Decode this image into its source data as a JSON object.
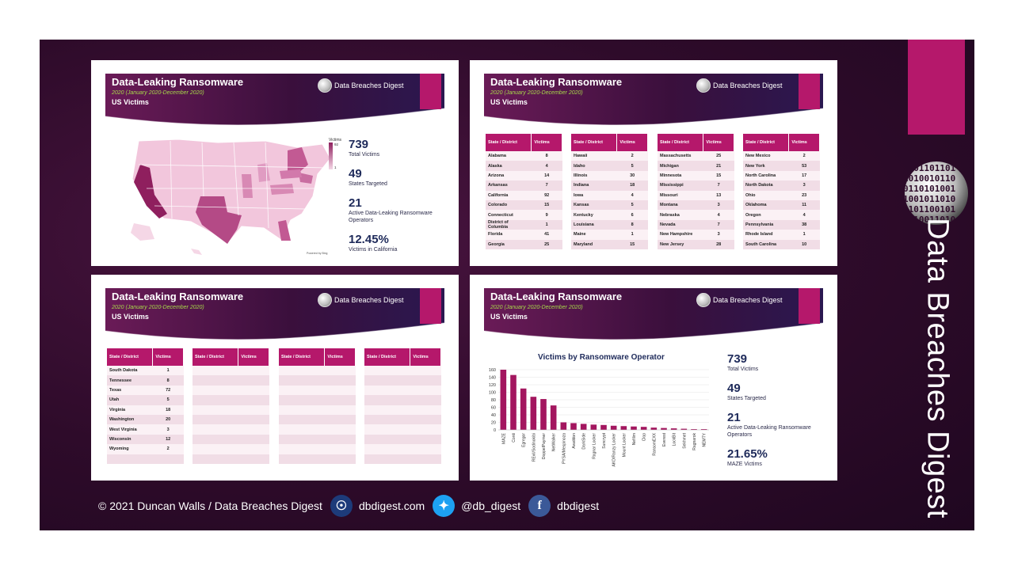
{
  "brand": {
    "vertical_title": "Data Breaches Digest"
  },
  "slide_header": {
    "title": "Data-Leaking Ransomware",
    "subtitle": "2020 (January 2020-December 2020)",
    "section": "US Victims",
    "logo_text": "Data Breaches Digest"
  },
  "slide1": {
    "map_legend_title": "Victims",
    "map_legend_max": "92",
    "map_legend_min": "1",
    "map_credit": "Powered by Bing",
    "stats": [
      {
        "value": "739",
        "label": "Total Victims"
      },
      {
        "value": "49",
        "label": "States Targeted"
      },
      {
        "value": "21",
        "label": "Active Data-Leaking Ransomware Operators"
      },
      {
        "value": "12.45%",
        "label": "Victims in California"
      }
    ]
  },
  "tables": {
    "col_state": "State / District",
    "col_victims": "Victims",
    "slide2": [
      [
        [
          "Alabama",
          "8"
        ],
        [
          "Alaska",
          "4"
        ],
        [
          "Arizona",
          "14"
        ],
        [
          "Arkansas",
          "7"
        ],
        [
          "California",
          "92"
        ],
        [
          "Colorado",
          "15"
        ],
        [
          "Connecticut",
          "9"
        ],
        [
          "District of Columbia",
          "1"
        ],
        [
          "Florida",
          "41"
        ],
        [
          "Georgia",
          "25"
        ]
      ],
      [
        [
          "Hawaii",
          "2"
        ],
        [
          "Idaho",
          "5"
        ],
        [
          "Illinois",
          "30"
        ],
        [
          "Indiana",
          "18"
        ],
        [
          "Iowa",
          "4"
        ],
        [
          "Kansas",
          "5"
        ],
        [
          "Kentucky",
          "6"
        ],
        [
          "Louisiana",
          "8"
        ],
        [
          "Maine",
          "1"
        ],
        [
          "Maryland",
          "15"
        ]
      ],
      [
        [
          "Massachusetts",
          "25"
        ],
        [
          "Michigan",
          "21"
        ],
        [
          "Minnesota",
          "15"
        ],
        [
          "Mississippi",
          "7"
        ],
        [
          "Missouri",
          "13"
        ],
        [
          "Montana",
          "3"
        ],
        [
          "Nebraska",
          "4"
        ],
        [
          "Nevada",
          "7"
        ],
        [
          "New Hampshire",
          "3"
        ],
        [
          "New Jersey",
          "28"
        ]
      ],
      [
        [
          "New Mexico",
          "2"
        ],
        [
          "New York",
          "53"
        ],
        [
          "North Carolina",
          "17"
        ],
        [
          "North Dakota",
          "3"
        ],
        [
          "Ohio",
          "23"
        ],
        [
          "Oklahoma",
          "11"
        ],
        [
          "Oregon",
          "4"
        ],
        [
          "Pennsylvania",
          "38"
        ],
        [
          "Rhode Island",
          "1"
        ],
        [
          "South Carolina",
          "10"
        ]
      ]
    ],
    "slide3": [
      [
        [
          "South Dakota",
          "1"
        ],
        [
          "Tennessee",
          "8"
        ],
        [
          "Texas",
          "72"
        ],
        [
          "Utah",
          "5"
        ],
        [
          "Virginia",
          "18"
        ],
        [
          "Washington",
          "20"
        ],
        [
          "West Virginia",
          "3"
        ],
        [
          "Wisconsin",
          "12"
        ],
        [
          "Wyoming",
          "2"
        ],
        [
          "",
          ""
        ]
      ],
      [
        [
          "",
          ""
        ],
        [
          "",
          ""
        ],
        [
          "",
          ""
        ],
        [
          "",
          ""
        ],
        [
          "",
          ""
        ],
        [
          "",
          ""
        ],
        [
          "",
          ""
        ],
        [
          "",
          ""
        ],
        [
          "",
          ""
        ],
        [
          "",
          ""
        ]
      ],
      [
        [
          "",
          ""
        ],
        [
          "",
          ""
        ],
        [
          "",
          ""
        ],
        [
          "",
          ""
        ],
        [
          "",
          ""
        ],
        [
          "",
          ""
        ],
        [
          "",
          ""
        ],
        [
          "",
          ""
        ],
        [
          "",
          ""
        ],
        [
          "",
          ""
        ]
      ],
      [
        [
          "",
          ""
        ],
        [
          "",
          ""
        ],
        [
          "",
          ""
        ],
        [
          "",
          ""
        ],
        [
          "",
          ""
        ],
        [
          "",
          ""
        ],
        [
          "",
          ""
        ],
        [
          "",
          ""
        ],
        [
          "",
          ""
        ],
        [
          "",
          ""
        ]
      ]
    ]
  },
  "slide4": {
    "stats": [
      {
        "value": "739",
        "label": "Total Victims"
      },
      {
        "value": "49",
        "label": "States Targeted"
      },
      {
        "value": "21",
        "label": "Active Data-Leaking Ransomware Operators"
      },
      {
        "value": "21.65%",
        "label": "MAZE Victims"
      }
    ]
  },
  "chart_data": {
    "type": "bar",
    "title": "Victims by Ransomware Operator",
    "categories": [
      "MAZE",
      "Conti",
      "Egregor",
      "REvil/Sodinokibi",
      "DoppelPaymer",
      "NetWalker",
      "PYSA/Mespinoza",
      "Avaddon",
      "DarkSide",
      "Ragnar Locker",
      "Suncrypt",
      "AKO/Ranzy Locker",
      "Mount Locker",
      "Nefilim",
      "Clop",
      "RansomEXX",
      "Everest",
      "LockBit",
      "Sekhmet",
      "Ragnarok",
      "NEMTY"
    ],
    "values": [
      160,
      146,
      110,
      88,
      82,
      65,
      20,
      18,
      16,
      14,
      13,
      11,
      10,
      9,
      8,
      6,
      5,
      4,
      3,
      2,
      2
    ],
    "ylim": [
      0,
      160
    ],
    "yticks": [
      0,
      20,
      40,
      60,
      80,
      100,
      120,
      140,
      160
    ],
    "xlabel": "",
    "ylabel": ""
  },
  "footer": {
    "copyright": "© 2021 Duncan Walls / Data Breaches Digest",
    "website": "dbdigest.com",
    "twitter": "@db_digest",
    "facebook": "dbdigest"
  },
  "colors": {
    "accent": "#b5186b",
    "navy": "#1e2a5a",
    "subtitle_green": "#a7d84a"
  }
}
